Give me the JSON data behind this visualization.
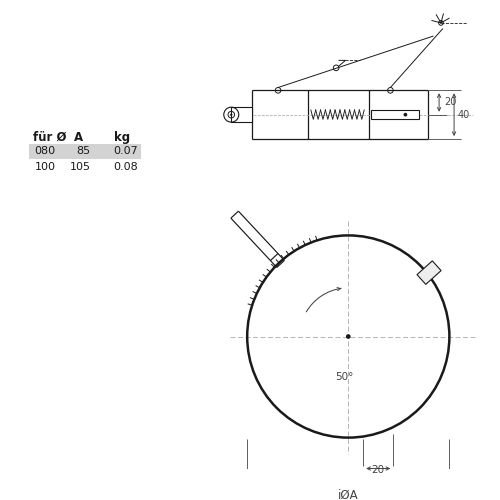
{
  "bg_color": "#ffffff",
  "table_header": [
    "für Ø",
    "A",
    "kg"
  ],
  "table_rows": [
    [
      "080",
      "85",
      "0.07"
    ],
    [
      "100",
      "105",
      "0.08"
    ]
  ],
  "dim_20": "20",
  "dim_40": "40",
  "dim_i_phi_a": "iØA",
  "dim_20b": "20",
  "deg_label": "50°",
  "line_color": "#1a1a1a",
  "dim_color": "#444444",
  "highlight_color": "#d3d3d3"
}
